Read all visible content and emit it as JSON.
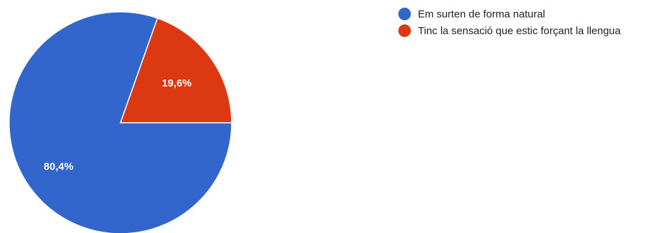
{
  "chart_data": {
    "type": "pie",
    "title": "",
    "categories": [
      "Em surten de forma natural",
      "Tinc la sensació que estic forçant la llengua"
    ],
    "values": [
      80.4,
      19.6
    ],
    "data_labels": [
      "80,4%",
      "19,6%"
    ],
    "colors": [
      "#3366cc",
      "#dc3912"
    ],
    "legend_position": "right"
  }
}
